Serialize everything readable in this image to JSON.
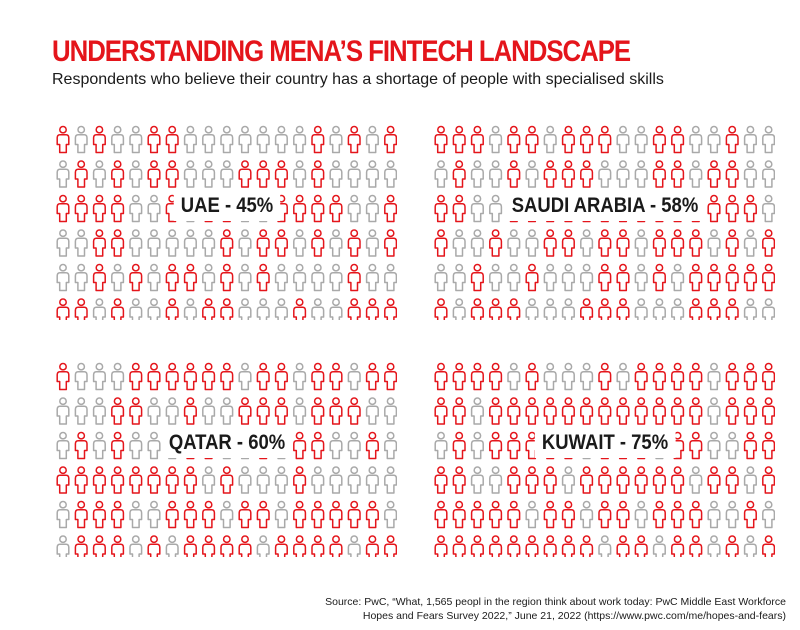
{
  "title": "UNDERSTANDING MENA’S FINTECH LANDSCAPE",
  "subtitle": "Respondents who believe their country has a shortage of people with specialised skills",
  "source": "Source: PwC, “What, 1,565 peopl in the region think about work today: PwC Middle East Workforce Hopes and Fears Survey 2022,” June 21, 2022 (https://www.pwc.com/me/hopes-and-fears)",
  "colors": {
    "accent": "#e4151b",
    "neutral": "#a9a9a9",
    "text": "#1a1a1a"
  },
  "icon": "person-outline-icon",
  "chart_data": [
    {
      "type": "pictogram",
      "country": "UAE",
      "label": "UAE - 45%",
      "value": 45,
      "unit": "%"
    },
    {
      "type": "pictogram",
      "country": "Saudi Arabia",
      "label": "SAUDI ARABIA - 58%",
      "value": 58,
      "unit": "%"
    },
    {
      "type": "pictogram",
      "country": "Qatar",
      "label": "QATAR - 60%",
      "value": 60,
      "unit": "%"
    },
    {
      "type": "pictogram",
      "country": "Kuwait",
      "label": "KUWAIT - 75%",
      "value": 75,
      "unit": "%"
    }
  ]
}
